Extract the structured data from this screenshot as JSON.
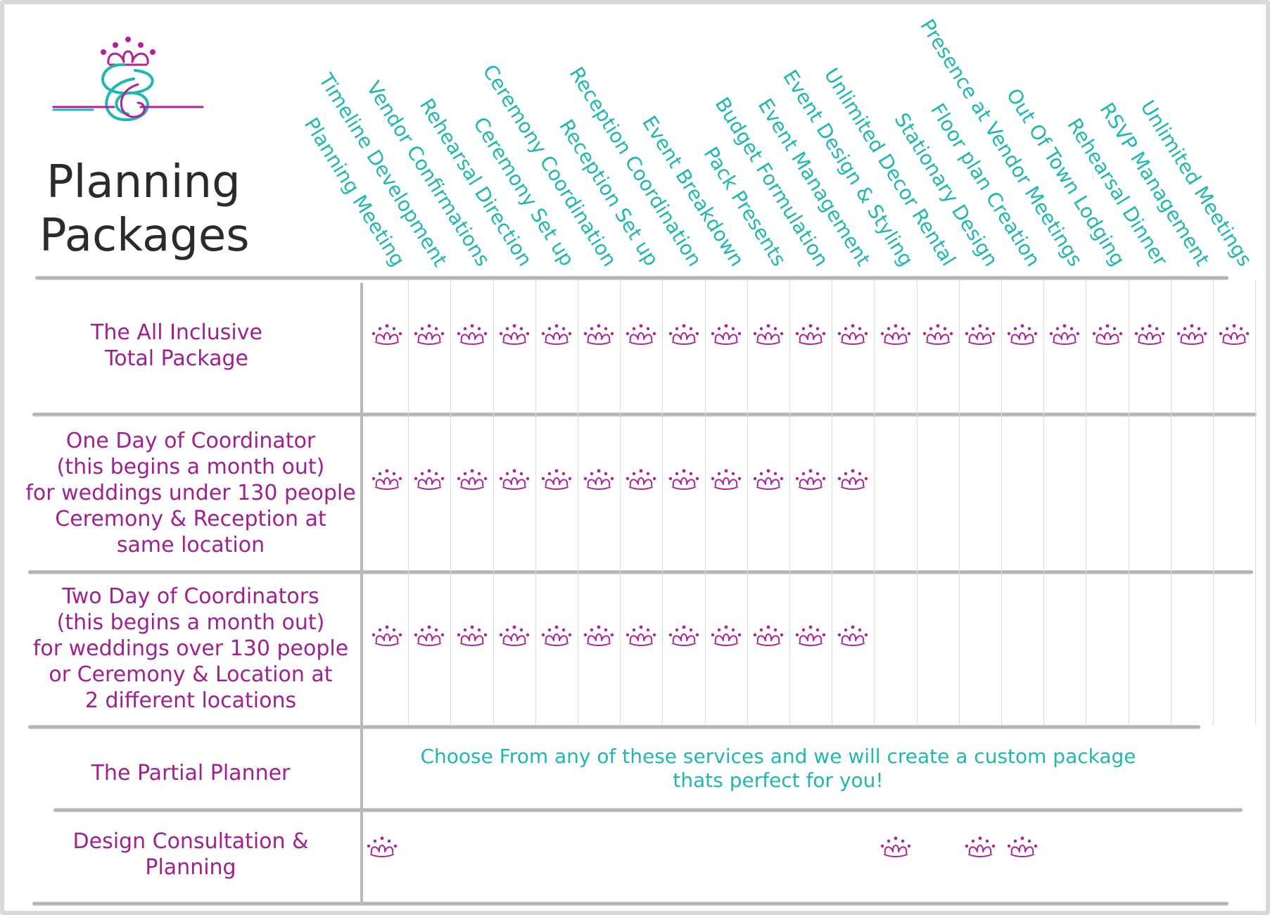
{
  "title": [
    "Planning",
    "Packages"
  ],
  "colors": {
    "teal": "#1fb8b0",
    "magenta": "#a0208f",
    "crown_magenta": "#b02298"
  },
  "logo_icon": "crown-ribbon-logo",
  "check_icon": "crown-icon",
  "services": [
    "Planning Meeting",
    "Timeline Development",
    "Vendor Confirmations",
    "Rehearsal Direction",
    "Ceremony Set up",
    "Ceremony Coordination",
    "Reception Set up",
    "Reception Coordination",
    "Event Breakdown",
    "Pack Presents",
    "Budget Formulation",
    "Event Management",
    "Event Design & Styling",
    "Unlimited Decor Rental",
    "Stationary Design",
    "Floor plan Creation",
    "Presence at Vendor Meetings",
    "Out Of Town Lodging",
    "Rehearsal Dinner",
    "RSVP Management",
    "Unlimited Meetings"
  ],
  "packages": [
    {
      "label_lines": [
        "The All Inclusive",
        "Total Package"
      ],
      "included": [
        true,
        true,
        true,
        true,
        true,
        true,
        true,
        true,
        true,
        true,
        true,
        true,
        true,
        true,
        true,
        true,
        true,
        true,
        true,
        true,
        true
      ]
    },
    {
      "label_lines": [
        "One Day of Coordinator",
        "(this begins a month out)",
        "for weddings under 130 people",
        "Ceremony & Reception at",
        "same location"
      ],
      "included": [
        true,
        true,
        true,
        true,
        true,
        true,
        true,
        true,
        true,
        true,
        true,
        true,
        false,
        false,
        false,
        false,
        false,
        false,
        false,
        false,
        false
      ]
    },
    {
      "label_lines": [
        "Two Day of Coordinators",
        "(this begins a month out)",
        "for weddings over 130 people",
        "or Ceremony & Location at",
        "2 different locations"
      ],
      "included": [
        true,
        true,
        true,
        true,
        true,
        true,
        true,
        true,
        true,
        true,
        true,
        true,
        false,
        false,
        false,
        false,
        false,
        false,
        false,
        false,
        false
      ]
    },
    {
      "label_lines": [
        "The Partial Planner"
      ],
      "note_lines": [
        "Choose From any of these services and we will create a custom package",
        "thats perfect for you!"
      ],
      "included": [
        false,
        false,
        false,
        false,
        false,
        false,
        false,
        false,
        false,
        false,
        false,
        false,
        false,
        false,
        false,
        false,
        false,
        false,
        false,
        false,
        false
      ]
    },
    {
      "label_lines": [
        "Design Consultation &",
        "Planning"
      ],
      "included": [
        true,
        false,
        false,
        false,
        false,
        false,
        false,
        false,
        false,
        false,
        false,
        false,
        true,
        false,
        true,
        true,
        false,
        false,
        false,
        false,
        false
      ]
    }
  ]
}
